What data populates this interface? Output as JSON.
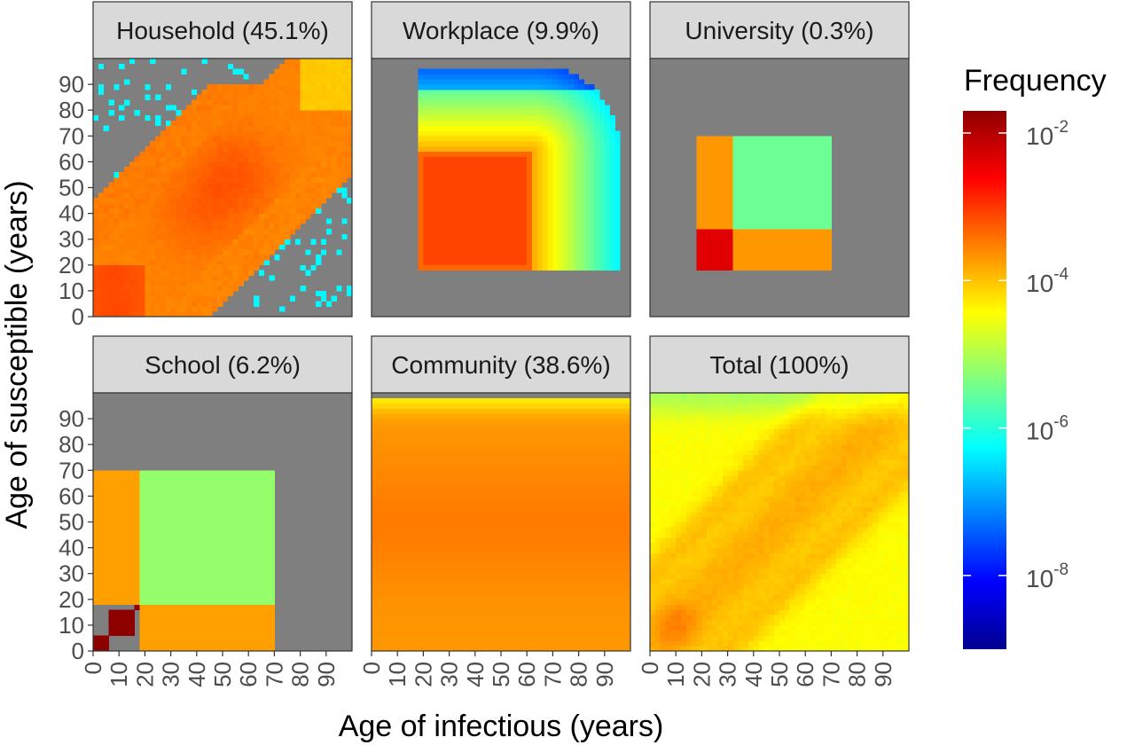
{
  "chart_data": {
    "type": "heatmap",
    "panels": [
      {
        "name": "household",
        "title": "Household (45.1%)",
        "pattern": "household"
      },
      {
        "name": "workplace",
        "title": "Workplace (9.9%)",
        "pattern": "workplace"
      },
      {
        "name": "university",
        "title": "University (0.3%)",
        "pattern": "university"
      },
      {
        "name": "school",
        "title": "School (6.2%)",
        "pattern": "school"
      },
      {
        "name": "community",
        "title": "Community (38.6%)",
        "pattern": "community"
      },
      {
        "name": "total",
        "title": "Total (100%)",
        "pattern": "total"
      }
    ],
    "xlabel": "Age of infectious (years)",
    "ylabel": "Age of susceptible (years)",
    "xlim": [
      0,
      100
    ],
    "ylim": [
      0,
      100
    ],
    "x_ticks": [
      0,
      10,
      20,
      30,
      40,
      50,
      60,
      70,
      80,
      90
    ],
    "y_ticks": [
      0,
      10,
      20,
      30,
      40,
      50,
      60,
      70,
      80,
      90
    ],
    "x_tick_labels": [
      "0",
      "10",
      "20",
      "30",
      "40",
      "50",
      "60",
      "70",
      "80",
      "90"
    ],
    "y_tick_labels": [
      "0",
      "10",
      "20",
      "30",
      "40",
      "50",
      "60",
      "70",
      "80",
      "90"
    ],
    "color_scale": {
      "label": "Frequency",
      "scale": "log10",
      "range_exponent": [
        -9,
        -1.7
      ],
      "tick_exponents": [
        -2,
        -4,
        -6,
        -8
      ],
      "tick_base": "10",
      "tick_labels": [
        "-2",
        "-4",
        "-6",
        "-8"
      ],
      "colormap": "jet"
    },
    "background_color": "#7f7f7f",
    "strip_color": "#d9d9d9"
  }
}
